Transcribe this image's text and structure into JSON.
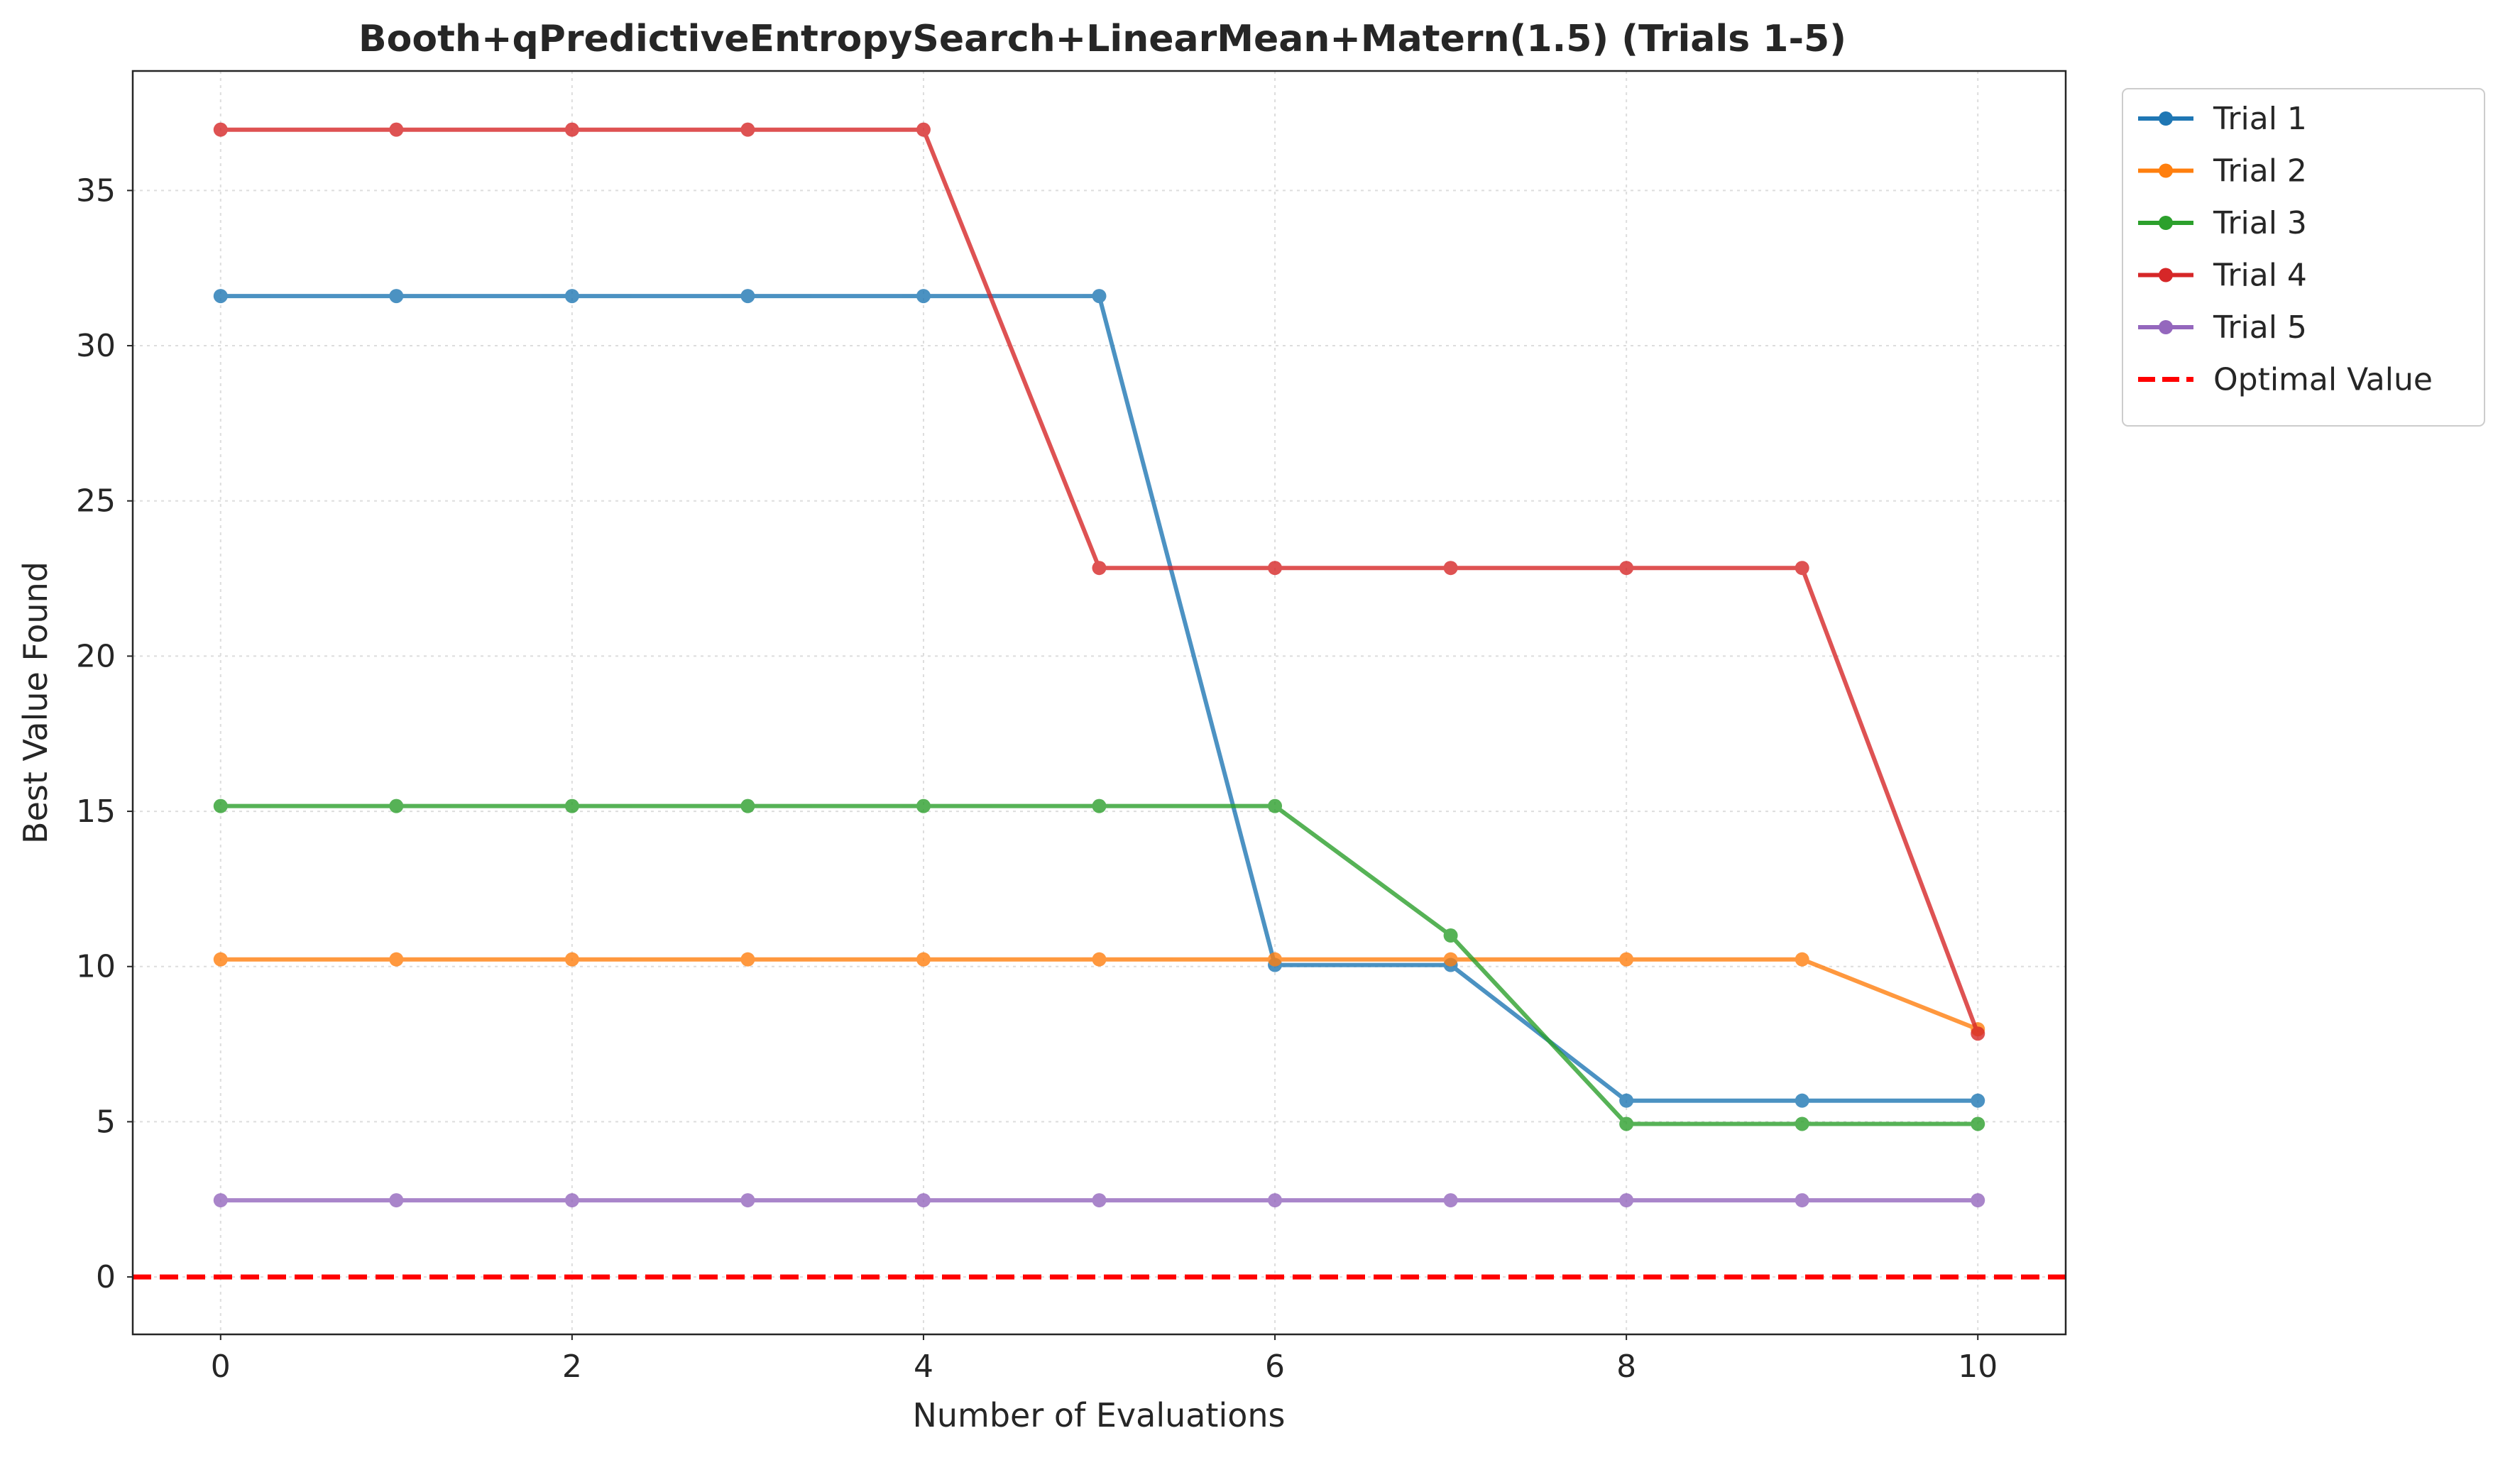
{
  "chart_data": {
    "type": "line",
    "title": "Booth+qPredictiveEntropySearch+LinearMean+Matern(1.5) (Trials 1-5)",
    "xlabel": "Number of Evaluations",
    "ylabel": "Best Value Found",
    "x": [
      0,
      1,
      2,
      3,
      4,
      5,
      6,
      7,
      8,
      9,
      10
    ],
    "xlim": [
      -0.5,
      10.5
    ],
    "ylim": [
      -1.85,
      38.85
    ],
    "xticks": [
      0,
      2,
      4,
      6,
      8,
      10
    ],
    "yticks": [
      0,
      5,
      10,
      15,
      20,
      25,
      30,
      35
    ],
    "grid": true,
    "legend_position": "outside-top-right",
    "series": [
      {
        "name": "Trial 1",
        "color": "#1f77b4",
        "values": [
          31.6,
          31.6,
          31.6,
          31.6,
          31.6,
          31.6,
          10.05,
          10.05,
          5.68,
          5.68,
          5.68
        ]
      },
      {
        "name": "Trial 2",
        "color": "#ff7f0e",
        "values": [
          10.23,
          10.23,
          10.23,
          10.23,
          10.23,
          10.23,
          10.23,
          10.23,
          10.23,
          10.23,
          7.98
        ]
      },
      {
        "name": "Trial 3",
        "color": "#2ca02c",
        "values": [
          15.17,
          15.17,
          15.17,
          15.17,
          15.17,
          15.17,
          15.17,
          11.0,
          4.93,
          4.93,
          4.93
        ]
      },
      {
        "name": "Trial 4",
        "color": "#d62728",
        "values": [
          36.96,
          36.96,
          36.96,
          36.96,
          36.96,
          22.84,
          22.84,
          22.84,
          22.84,
          22.84,
          7.84
        ]
      },
      {
        "name": "Trial 5",
        "color": "#9467bd",
        "values": [
          2.47,
          2.47,
          2.47,
          2.47,
          2.47,
          2.47,
          2.47,
          2.47,
          2.47,
          2.47,
          2.47
        ]
      }
    ],
    "reference_line": {
      "name": "Optimal Value",
      "value": 0,
      "color": "#ff0000",
      "style": "dashed"
    }
  }
}
